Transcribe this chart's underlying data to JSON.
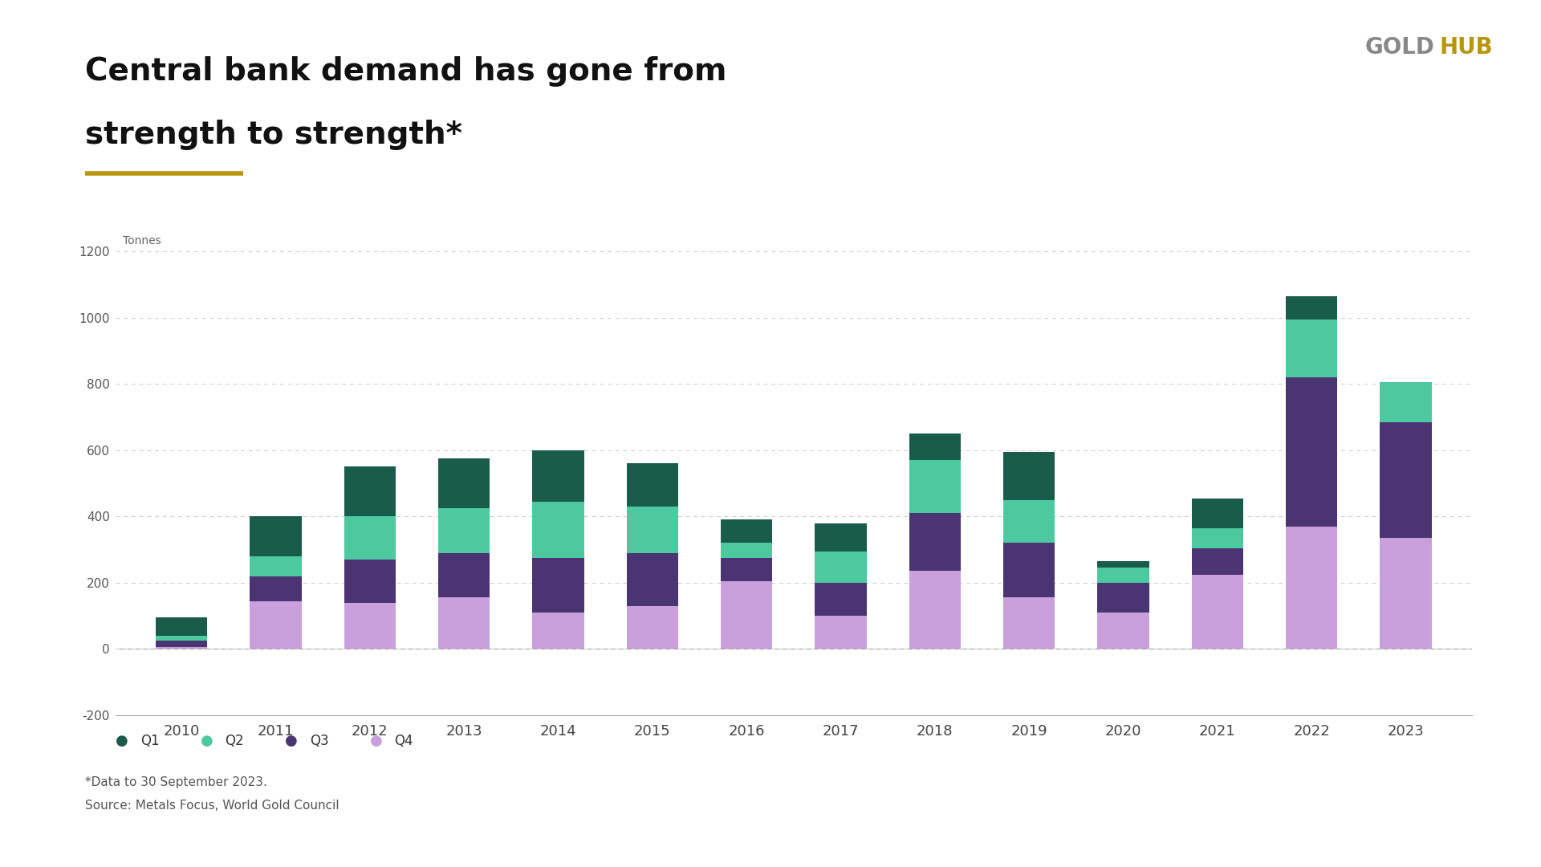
{
  "years": [
    2010,
    2011,
    2012,
    2013,
    2014,
    2015,
    2016,
    2017,
    2018,
    2019,
    2020,
    2021,
    2022,
    2023
  ],
  "Q1": [
    55,
    120,
    150,
    150,
    155,
    130,
    70,
    85,
    80,
    145,
    -20,
    90,
    70,
    0
  ],
  "Q2": [
    15,
    60,
    130,
    135,
    170,
    140,
    45,
    95,
    160,
    130,
    65,
    60,
    175,
    120
  ],
  "Q3": [
    20,
    75,
    130,
    135,
    165,
    160,
    70,
    100,
    175,
    165,
    90,
    80,
    450,
    350
  ],
  "Q4": [
    5,
    145,
    140,
    155,
    110,
    130,
    205,
    100,
    235,
    155,
    110,
    225,
    370,
    335
  ],
  "colors": {
    "Q1": "#1a5c4a",
    "Q2": "#4dc9a0",
    "Q3": "#4b3472",
    "Q4": "#c9a0dc"
  },
  "title_line1": "Central bank demand has gone from",
  "title_line2": "strength to strength*",
  "ylabel_label": "Tonnes",
  "ylim": [
    -200,
    1200
  ],
  "yticks": [
    -200,
    0,
    200,
    400,
    600,
    800,
    1000,
    1200
  ],
  "footnote1": "*Data to 30 September 2023.",
  "footnote2": "Source: Metals Focus, World Gold Council",
  "background_color": "#ffffff",
  "title_underline_color": "#b8960c",
  "gold_color": "#b8960c",
  "gray_color": "#888888"
}
